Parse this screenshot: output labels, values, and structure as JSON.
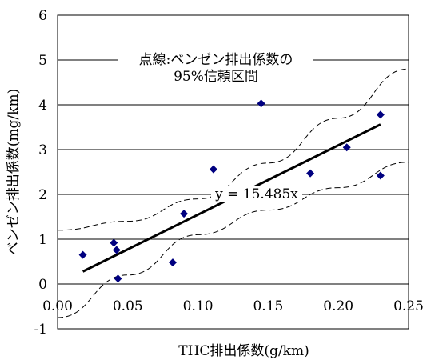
{
  "chart_data": {
    "type": "scatter",
    "xlabel": "THC排出係数(g/km)",
    "ylabel": "ベンゼン排出係数(mg/km)",
    "xlim": [
      0.0,
      0.25
    ],
    "ylim": [
      -1,
      6
    ],
    "x_ticks": [
      "0.00",
      "0.05",
      "0.10",
      "0.15",
      "0.20",
      "0.25"
    ],
    "y_ticks": [
      "-1",
      "0",
      "1",
      "2",
      "3",
      "4",
      "5",
      "6"
    ],
    "grid": "horizontal",
    "points": [
      {
        "x": 0.018,
        "y": 0.65
      },
      {
        "x": 0.04,
        "y": 0.92
      },
      {
        "x": 0.042,
        "y": 0.76
      },
      {
        "x": 0.043,
        "y": 0.12
      },
      {
        "x": 0.082,
        "y": 0.48
      },
      {
        "x": 0.09,
        "y": 1.57
      },
      {
        "x": 0.111,
        "y": 2.56
      },
      {
        "x": 0.145,
        "y": 4.03
      },
      {
        "x": 0.18,
        "y": 2.47
      },
      {
        "x": 0.206,
        "y": 3.05
      },
      {
        "x": 0.23,
        "y": 3.78
      },
      {
        "x": 0.23,
        "y": 2.42
      }
    ],
    "regression": {
      "slope": 15.485,
      "x_range": [
        0.018,
        0.23
      ],
      "label": "y = 15.485x"
    },
    "confidence_band": {
      "upper": [
        [
          0.0,
          1.2
        ],
        [
          0.05,
          1.4
        ],
        [
          0.1,
          1.9
        ],
        [
          0.15,
          2.7
        ],
        [
          0.2,
          3.7
        ],
        [
          0.25,
          4.8
        ]
      ],
      "lower": [
        [
          0.0,
          -0.75
        ],
        [
          0.05,
          0.2
        ],
        [
          0.1,
          1.1
        ],
        [
          0.15,
          1.65
        ],
        [
          0.2,
          2.15
        ],
        [
          0.25,
          2.72
        ]
      ]
    },
    "annotation_lines": [
      "点線:ベンゼン排出係数の",
      "95%信頼区間"
    ],
    "colors": {
      "marker": "#000080",
      "regression": "#000000",
      "band": "#000000",
      "grid": "#000000"
    }
  }
}
